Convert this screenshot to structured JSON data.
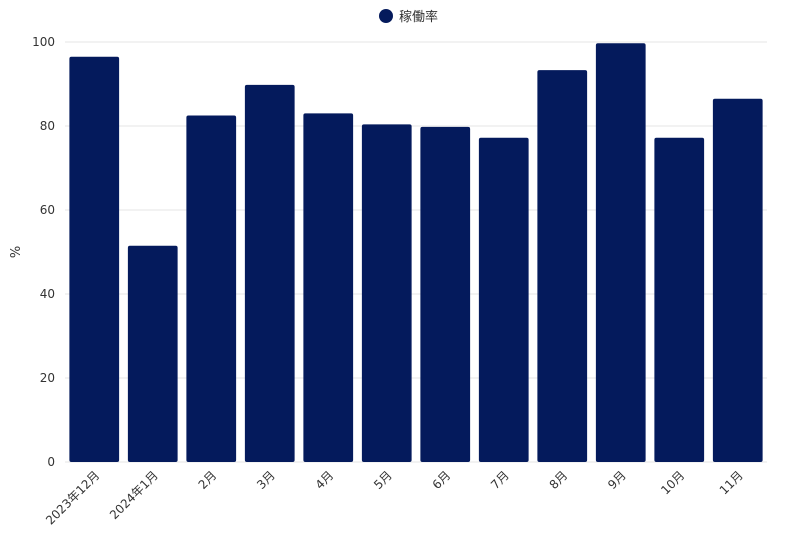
{
  "chart_data": {
    "type": "bar",
    "categories": [
      "2023年12月",
      "2024年1月",
      "2月",
      "3月",
      "4月",
      "5月",
      "6月",
      "7月",
      "8月",
      "9月",
      "10月",
      "11月"
    ],
    "series": [
      {
        "name": "稼働率",
        "values": [
          96.5,
          51.5,
          82.5,
          89.8,
          83.0,
          80.4,
          79.8,
          77.2,
          93.3,
          99.7,
          77.2,
          86.5
        ],
        "color": "#041A5C"
      }
    ],
    "xlabel": "",
    "ylabel": "%",
    "ylim": [
      0,
      100
    ],
    "yticks": [
      0,
      20,
      40,
      60,
      80,
      100
    ],
    "grid": true,
    "legend": "top-center"
  }
}
